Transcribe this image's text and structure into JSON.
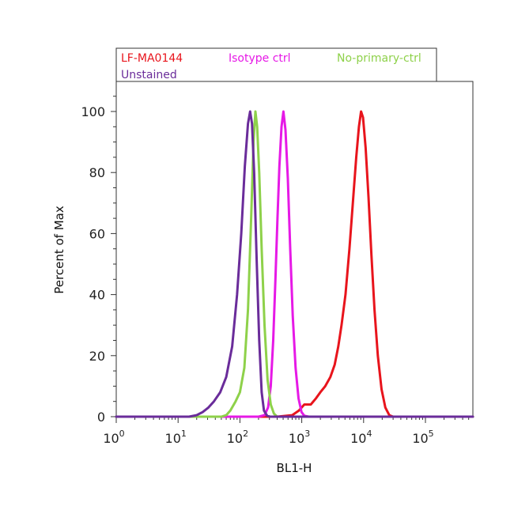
{
  "chart_data": {
    "type": "line",
    "title": "",
    "xlabel": "BL1-H",
    "ylabel": "Percent of Max",
    "x_scale": "log",
    "xlim": [
      1,
      800000
    ],
    "ylim": [
      0,
      108
    ],
    "x_ticks": [
      {
        "value": 1,
        "base": "10",
        "exp": "0"
      },
      {
        "value": 10,
        "base": "10",
        "exp": "1"
      },
      {
        "value": 100,
        "base": "10",
        "exp": "2"
      },
      {
        "value": 1000,
        "base": "10",
        "exp": "3"
      },
      {
        "value": 10000,
        "base": "10",
        "exp": "4"
      },
      {
        "value": 100000,
        "base": "10",
        "exp": "5"
      }
    ],
    "y_ticks": [
      0,
      20,
      40,
      60,
      80,
      100
    ],
    "grid": false,
    "legend_position": "top-left",
    "series": [
      {
        "name": "LF-MA0144",
        "color": "#e8141c",
        "points": [
          [
            1,
            0
          ],
          [
            200,
            0
          ],
          [
            400,
            0
          ],
          [
            700,
            0.5
          ],
          [
            900,
            2
          ],
          [
            1100,
            4
          ],
          [
            1400,
            4
          ],
          [
            1700,
            6
          ],
          [
            2000,
            8
          ],
          [
            2400,
            10
          ],
          [
            2900,
            13
          ],
          [
            3400,
            17
          ],
          [
            3900,
            23
          ],
          [
            4400,
            30
          ],
          [
            5100,
            40
          ],
          [
            5900,
            55
          ],
          [
            6700,
            70
          ],
          [
            7600,
            85
          ],
          [
            8400,
            95
          ],
          [
            9100,
            100
          ],
          [
            9800,
            98
          ],
          [
            10800,
            88
          ],
          [
            12000,
            72
          ],
          [
            13400,
            53
          ],
          [
            15000,
            35
          ],
          [
            17000,
            20
          ],
          [
            19500,
            9
          ],
          [
            22500,
            3
          ],
          [
            26000,
            0.5
          ],
          [
            30000,
            0
          ],
          [
            700000,
            0
          ]
        ]
      },
      {
        "name": "Isotype ctrl",
        "color": "#e619e6",
        "points": [
          [
            1,
            0
          ],
          [
            200,
            0
          ],
          [
            250,
            0.5
          ],
          [
            285,
            3
          ],
          [
            315,
            10
          ],
          [
            345,
            25
          ],
          [
            375,
            45
          ],
          [
            405,
            65
          ],
          [
            435,
            82
          ],
          [
            470,
            95
          ],
          [
            505,
            100
          ],
          [
            545,
            94
          ],
          [
            595,
            78
          ],
          [
            650,
            55
          ],
          [
            715,
            33
          ],
          [
            795,
            16
          ],
          [
            885,
            6
          ],
          [
            990,
            1.5
          ],
          [
            1100,
            0.3
          ],
          [
            1300,
            0
          ],
          [
            700000,
            0
          ]
        ]
      },
      {
        "name": "No-primary-ctrl",
        "color": "#8ed14a",
        "points": [
          [
            1,
            0
          ],
          [
            50,
            0
          ],
          [
            60,
            0.5
          ],
          [
            70,
            2
          ],
          [
            85,
            5
          ],
          [
            100,
            8
          ],
          [
            118,
            16
          ],
          [
            135,
            35
          ],
          [
            152,
            65
          ],
          [
            166,
            90
          ],
          [
            178,
            100
          ],
          [
            190,
            95
          ],
          [
            205,
            80
          ],
          [
            225,
            55
          ],
          [
            250,
            30
          ],
          [
            280,
            12
          ],
          [
            315,
            4
          ],
          [
            355,
            1
          ],
          [
            400,
            0
          ],
          [
            700000,
            0
          ]
        ]
      },
      {
        "name": "Unstained",
        "color": "#6a2c9a",
        "points": [
          [
            1,
            0
          ],
          [
            15,
            0
          ],
          [
            20,
            0.5
          ],
          [
            25,
            1.5
          ],
          [
            31,
            3
          ],
          [
            38,
            5
          ],
          [
            48,
            8
          ],
          [
            60,
            13
          ],
          [
            75,
            23
          ],
          [
            90,
            40
          ],
          [
            105,
            60
          ],
          [
            120,
            82
          ],
          [
            135,
            96
          ],
          [
            146,
            100
          ],
          [
            157,
            96
          ],
          [
            170,
            80
          ],
          [
            186,
            52
          ],
          [
            205,
            25
          ],
          [
            225,
            8
          ],
          [
            245,
            2
          ],
          [
            275,
            0.3
          ],
          [
            310,
            0
          ],
          [
            700000,
            0
          ]
        ]
      }
    ]
  }
}
